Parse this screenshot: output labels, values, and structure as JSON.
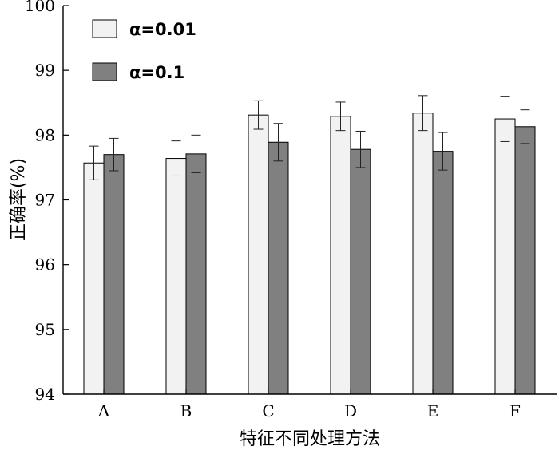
{
  "chart_data": {
    "type": "bar",
    "title": "",
    "xlabel": "特征不同处理方法",
    "ylabel": "正确率(%)",
    "ylim": [
      94,
      100
    ],
    "yticks": [
      "94",
      "95",
      "96",
      "97",
      "98",
      "99",
      "100"
    ],
    "categories": [
      "A",
      "B",
      "C",
      "D",
      "E",
      "F"
    ],
    "legend_position": "top-left",
    "grid": false,
    "series": [
      {
        "name": "α=0.01",
        "color": "#f2f2f2",
        "values": [
          97.57,
          97.64,
          98.31,
          98.29,
          98.34,
          98.25
        ],
        "errors": [
          0.26,
          0.27,
          0.22,
          0.22,
          0.27,
          0.35
        ]
      },
      {
        "name": "α=0.1",
        "color": "#808080",
        "values": [
          97.7,
          97.71,
          97.89,
          97.78,
          97.75,
          98.13
        ],
        "errors": [
          0.25,
          0.29,
          0.29,
          0.28,
          0.29,
          0.26
        ]
      }
    ]
  }
}
